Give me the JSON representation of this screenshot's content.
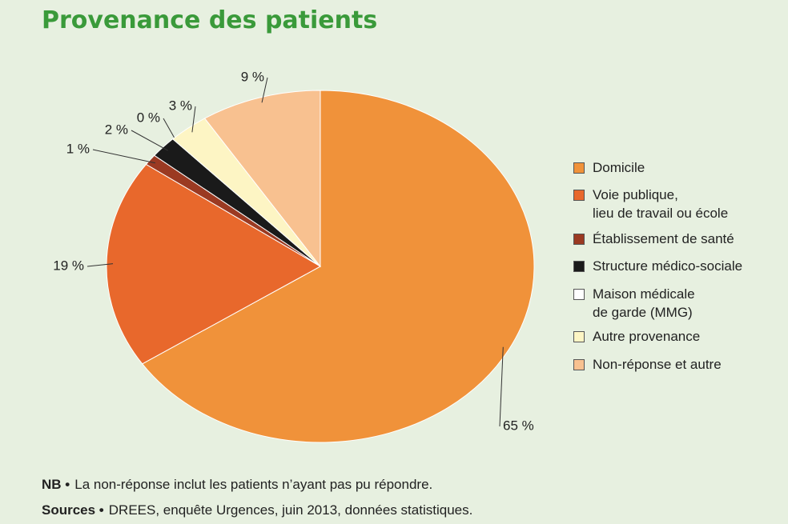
{
  "chart_data": {
    "type": "pie",
    "title": "Provenance des patients",
    "categories": [
      "Domicile",
      "Voie publique,\nlieu de travail ou école",
      "Établissement de santé",
      "Structure médico-sociale",
      "Maison médicale\nde garde (MMG)",
      "Autre provenance",
      "Non-réponse et autre"
    ],
    "values": [
      65,
      19,
      1,
      2,
      0,
      3,
      9
    ],
    "value_labels": [
      "65 %",
      "19 %",
      "1 %",
      "2 %",
      "0 %",
      "3 %",
      "9 %"
    ],
    "colors": [
      "#f0923a",
      "#e8682c",
      "#9b3a22",
      "#1a1a1a",
      "#ffffff",
      "#fdf5c4",
      "#f8c190"
    ],
    "legend": "right",
    "notes": [
      {
        "label": "NB •",
        "text": "La non-réponse inclut les patients n’ayant pas pu répondre."
      },
      {
        "label": "Sources •",
        "text": "DREES, enquête Urgences, juin 2013, données statistiques."
      }
    ]
  }
}
